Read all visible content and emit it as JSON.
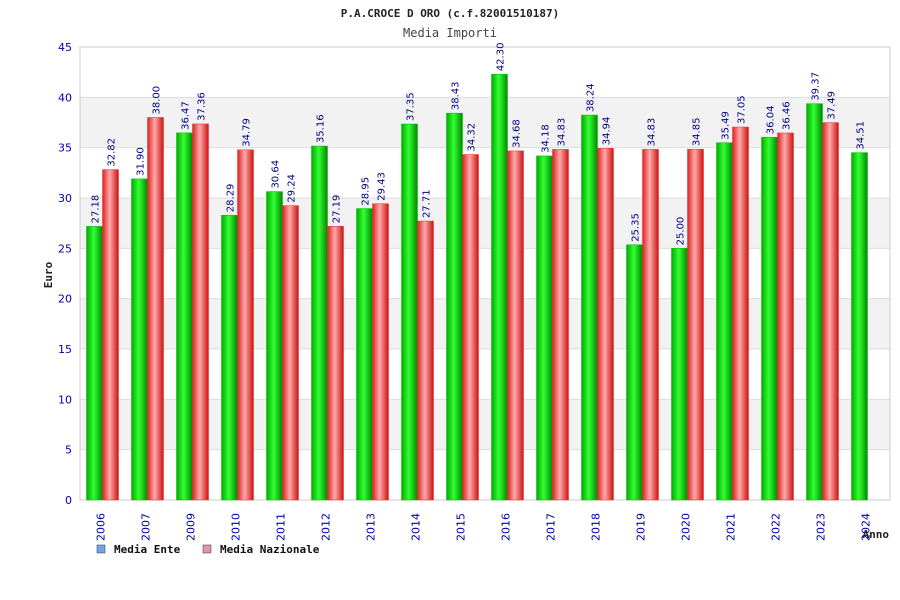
{
  "chart_data": {
    "type": "bar",
    "title": "P.A.CROCE D ORO (c.f.82001510187)",
    "subtitle": "Media Importi",
    "xlabel": "Anno",
    "ylabel": "Euro",
    "ylim": [
      0,
      45
    ],
    "yticks": [
      0,
      5,
      10,
      15,
      20,
      25,
      30,
      35,
      40,
      45
    ],
    "grid": true,
    "legend_position": "bottom-left",
    "categories": [
      "2006",
      "2007",
      "2009",
      "2010",
      "2011",
      "2012",
      "2013",
      "2014",
      "2015",
      "2016",
      "2017",
      "2018",
      "2019",
      "2020",
      "2021",
      "2022",
      "2023",
      "2024"
    ],
    "series": [
      {
        "name": "Media Ente",
        "color": "#00bb00",
        "legend_color": "#6aa8e8",
        "values": [
          27.18,
          31.9,
          36.47,
          28.29,
          30.64,
          35.16,
          28.95,
          37.35,
          38.43,
          42.3,
          34.18,
          38.24,
          25.35,
          25.0,
          35.49,
          36.04,
          39.37,
          34.51
        ],
        "labels": [
          "27.18",
          "31.90",
          "36.47",
          "28.29",
          "30.64",
          "35.16",
          "28.95",
          "37.35",
          "38.43",
          "42.30",
          "34.18",
          "38.24",
          "25.35",
          "25.00",
          "35.49",
          "36.04",
          "39.37",
          "34.51"
        ]
      },
      {
        "name": "Media Nazionale",
        "color": "#e83030",
        "legend_color": "#e890b8",
        "values": [
          32.82,
          38.0,
          37.36,
          34.79,
          29.24,
          27.19,
          29.43,
          27.71,
          34.32,
          34.68,
          34.83,
          34.94,
          34.83,
          34.85,
          37.05,
          36.46,
          37.49,
          null
        ],
        "labels": [
          "32.82",
          "38.00",
          "37.36",
          "34.79",
          "29.24",
          "27.19",
          "29.43",
          "27.71",
          "34.32",
          "34.68",
          "34.83",
          "34.94",
          "34.83",
          "34.85",
          "37.05",
          "36.46",
          "37.49",
          ""
        ]
      }
    ]
  }
}
